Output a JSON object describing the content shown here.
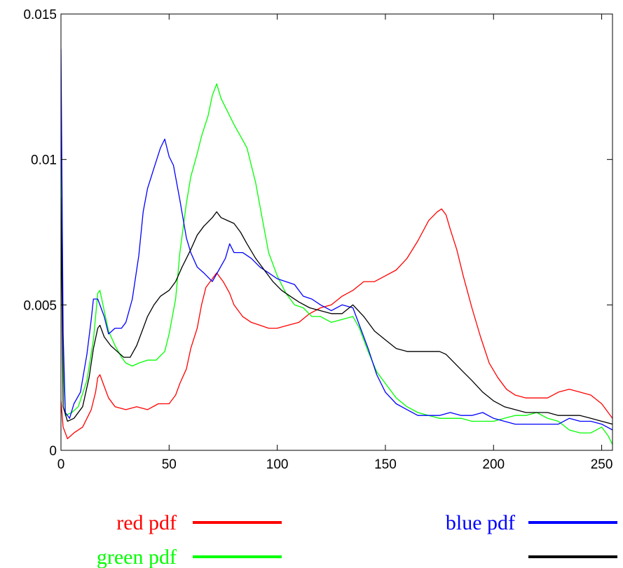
{
  "chart_data": {
    "type": "line",
    "title": "",
    "xlabel": "",
    "ylabel": "",
    "xlim": [
      0,
      255
    ],
    "ylim": [
      0,
      0.015
    ],
    "xticks": [
      0,
      50,
      100,
      150,
      200,
      250
    ],
    "xtick_labels": [
      "0",
      "50",
      "100",
      "150",
      "200",
      "250"
    ],
    "yticks": [
      0,
      0.005,
      0.01,
      0.015
    ],
    "ytick_labels": [
      "0",
      "0.005",
      "0.01",
      "0.015"
    ],
    "grid": false,
    "legend_placement": "bottom",
    "series": [
      {
        "name": "red pdf",
        "color": "#ff0000",
        "points": [
          [
            0,
            0.0017
          ],
          [
            1,
            0.0008
          ],
          [
            3,
            0.0004
          ],
          [
            6,
            0.0006
          ],
          [
            10,
            0.0008
          ],
          [
            14,
            0.0014
          ],
          [
            16,
            0.002
          ],
          [
            17,
            0.0025
          ],
          [
            18,
            0.0026
          ],
          [
            20,
            0.0022
          ],
          [
            22,
            0.0018
          ],
          [
            25,
            0.0015
          ],
          [
            30,
            0.0014
          ],
          [
            35,
            0.0015
          ],
          [
            40,
            0.0014
          ],
          [
            45,
            0.0016
          ],
          [
            50,
            0.0016
          ],
          [
            53,
            0.0019
          ],
          [
            55,
            0.0023
          ],
          [
            58,
            0.0028
          ],
          [
            60,
            0.0035
          ],
          [
            63,
            0.0042
          ],
          [
            65,
            0.005
          ],
          [
            67,
            0.0056
          ],
          [
            70,
            0.0059
          ],
          [
            72,
            0.0061
          ],
          [
            75,
            0.0058
          ],
          [
            78,
            0.0054
          ],
          [
            80,
            0.005
          ],
          [
            84,
            0.0046
          ],
          [
            88,
            0.0044
          ],
          [
            92,
            0.0043
          ],
          [
            96,
            0.0042
          ],
          [
            100,
            0.0042
          ],
          [
            105,
            0.0043
          ],
          [
            110,
            0.0044
          ],
          [
            115,
            0.0047
          ],
          [
            120,
            0.0049
          ],
          [
            125,
            0.005
          ],
          [
            130,
            0.0053
          ],
          [
            135,
            0.0055
          ],
          [
            140,
            0.0058
          ],
          [
            145,
            0.0058
          ],
          [
            150,
            0.006
          ],
          [
            155,
            0.0062
          ],
          [
            160,
            0.0066
          ],
          [
            165,
            0.0072
          ],
          [
            170,
            0.0079
          ],
          [
            174,
            0.0082
          ],
          [
            176,
            0.0083
          ],
          [
            178,
            0.0081
          ],
          [
            180,
            0.0076
          ],
          [
            183,
            0.0069
          ],
          [
            186,
            0.006
          ],
          [
            190,
            0.0049
          ],
          [
            194,
            0.0039
          ],
          [
            198,
            0.003
          ],
          [
            202,
            0.0025
          ],
          [
            206,
            0.0021
          ],
          [
            210,
            0.0019
          ],
          [
            215,
            0.0018
          ],
          [
            220,
            0.0018
          ],
          [
            225,
            0.0018
          ],
          [
            230,
            0.002
          ],
          [
            235,
            0.0021
          ],
          [
            240,
            0.002
          ],
          [
            245,
            0.0019
          ],
          [
            250,
            0.0016
          ],
          [
            255,
            0.0011
          ]
        ]
      },
      {
        "name": "green pdf",
        "color": "#00ff00",
        "points": [
          [
            0,
            0.0104
          ],
          [
            1,
            0.003
          ],
          [
            2,
            0.0012
          ],
          [
            5,
            0.0013
          ],
          [
            8,
            0.0015
          ],
          [
            12,
            0.0024
          ],
          [
            15,
            0.0038
          ],
          [
            17,
            0.0054
          ],
          [
            18,
            0.0055
          ],
          [
            20,
            0.0048
          ],
          [
            22,
            0.0041
          ],
          [
            25,
            0.0036
          ],
          [
            28,
            0.0032
          ],
          [
            30,
            0.003
          ],
          [
            33,
            0.0029
          ],
          [
            36,
            0.003
          ],
          [
            40,
            0.0031
          ],
          [
            44,
            0.0031
          ],
          [
            48,
            0.0034
          ],
          [
            50,
            0.004
          ],
          [
            53,
            0.0052
          ],
          [
            55,
            0.0068
          ],
          [
            58,
            0.0085
          ],
          [
            60,
            0.0094
          ],
          [
            63,
            0.0102
          ],
          [
            65,
            0.0108
          ],
          [
            68,
            0.0115
          ],
          [
            70,
            0.0122
          ],
          [
            72,
            0.0126
          ],
          [
            74,
            0.0121
          ],
          [
            76,
            0.0118
          ],
          [
            78,
            0.0115
          ],
          [
            80,
            0.0112
          ],
          [
            83,
            0.0108
          ],
          [
            86,
            0.0104
          ],
          [
            90,
            0.0092
          ],
          [
            93,
            0.008
          ],
          [
            96,
            0.0068
          ],
          [
            100,
            0.006
          ],
          [
            104,
            0.0054
          ],
          [
            108,
            0.005
          ],
          [
            112,
            0.0049
          ],
          [
            116,
            0.0046
          ],
          [
            120,
            0.0046
          ],
          [
            125,
            0.0044
          ],
          [
            130,
            0.0045
          ],
          [
            135,
            0.0046
          ],
          [
            138,
            0.0042
          ],
          [
            142,
            0.0034
          ],
          [
            146,
            0.0027
          ],
          [
            150,
            0.0023
          ],
          [
            155,
            0.0018
          ],
          [
            160,
            0.0015
          ],
          [
            165,
            0.0013
          ],
          [
            170,
            0.0012
          ],
          [
            175,
            0.0011
          ],
          [
            180,
            0.0011
          ],
          [
            185,
            0.0011
          ],
          [
            190,
            0.001
          ],
          [
            195,
            0.001
          ],
          [
            200,
            0.001
          ],
          [
            205,
            0.0011
          ],
          [
            210,
            0.0012
          ],
          [
            215,
            0.0012
          ],
          [
            220,
            0.0013
          ],
          [
            225,
            0.0011
          ],
          [
            230,
            0.001
          ],
          [
            235,
            0.0007
          ],
          [
            240,
            0.0006
          ],
          [
            245,
            0.0006
          ],
          [
            250,
            0.0008
          ],
          [
            253,
            0.0005
          ],
          [
            255,
            0.0002
          ]
        ]
      },
      {
        "name": "blue pdf",
        "color": "#0000ff",
        "points": [
          [
            0,
            0.0138
          ],
          [
            1,
            0.004
          ],
          [
            2,
            0.0013
          ],
          [
            4,
            0.0011
          ],
          [
            6,
            0.0016
          ],
          [
            9,
            0.002
          ],
          [
            12,
            0.0033
          ],
          [
            14,
            0.0045
          ],
          [
            15,
            0.0052
          ],
          [
            17,
            0.0052
          ],
          [
            20,
            0.0046
          ],
          [
            22,
            0.004
          ],
          [
            25,
            0.0042
          ],
          [
            28,
            0.0042
          ],
          [
            30,
            0.0044
          ],
          [
            33,
            0.0052
          ],
          [
            36,
            0.0067
          ],
          [
            38,
            0.0082
          ],
          [
            40,
            0.009
          ],
          [
            43,
            0.0097
          ],
          [
            46,
            0.0104
          ],
          [
            48,
            0.0107
          ],
          [
            50,
            0.0101
          ],
          [
            52,
            0.0098
          ],
          [
            55,
            0.0086
          ],
          [
            58,
            0.0073
          ],
          [
            60,
            0.0068
          ],
          [
            63,
            0.0063
          ],
          [
            66,
            0.0061
          ],
          [
            70,
            0.0058
          ],
          [
            73,
            0.0062
          ],
          [
            76,
            0.0066
          ],
          [
            78,
            0.0071
          ],
          [
            80,
            0.0068
          ],
          [
            84,
            0.0068
          ],
          [
            88,
            0.0066
          ],
          [
            92,
            0.0063
          ],
          [
            96,
            0.0061
          ],
          [
            100,
            0.0059
          ],
          [
            104,
            0.0058
          ],
          [
            108,
            0.0057
          ],
          [
            112,
            0.0053
          ],
          [
            116,
            0.0052
          ],
          [
            120,
            0.005
          ],
          [
            125,
            0.0048
          ],
          [
            130,
            0.005
          ],
          [
            135,
            0.0049
          ],
          [
            138,
            0.0043
          ],
          [
            142,
            0.0035
          ],
          [
            146,
            0.0026
          ],
          [
            150,
            0.002
          ],
          [
            155,
            0.0016
          ],
          [
            160,
            0.0014
          ],
          [
            165,
            0.0012
          ],
          [
            170,
            0.0012
          ],
          [
            175,
            0.0012
          ],
          [
            180,
            0.0013
          ],
          [
            185,
            0.0012
          ],
          [
            190,
            0.0012
          ],
          [
            195,
            0.0013
          ],
          [
            200,
            0.0011
          ],
          [
            205,
            0.001
          ],
          [
            210,
            0.0009
          ],
          [
            215,
            0.0009
          ],
          [
            220,
            0.0009
          ],
          [
            225,
            0.0009
          ],
          [
            230,
            0.0009
          ],
          [
            235,
            0.0011
          ],
          [
            240,
            0.001
          ],
          [
            245,
            0.001
          ],
          [
            250,
            0.0009
          ],
          [
            255,
            0.0007
          ]
        ]
      },
      {
        "name": "",
        "color": "#000000",
        "points": [
          [
            0,
            0.0087
          ],
          [
            1,
            0.0015
          ],
          [
            3,
            0.001
          ],
          [
            6,
            0.0011
          ],
          [
            10,
            0.0015
          ],
          [
            13,
            0.0025
          ],
          [
            15,
            0.0035
          ],
          [
            17,
            0.0042
          ],
          [
            18,
            0.0043
          ],
          [
            20,
            0.0039
          ],
          [
            23,
            0.0036
          ],
          [
            26,
            0.0034
          ],
          [
            29,
            0.0032
          ],
          [
            32,
            0.0032
          ],
          [
            35,
            0.0036
          ],
          [
            38,
            0.0042
          ],
          [
            40,
            0.0046
          ],
          [
            43,
            0.005
          ],
          [
            46,
            0.0053
          ],
          [
            50,
            0.0055
          ],
          [
            53,
            0.0058
          ],
          [
            56,
            0.0063
          ],
          [
            60,
            0.0069
          ],
          [
            63,
            0.0074
          ],
          [
            66,
            0.0077
          ],
          [
            70,
            0.008
          ],
          [
            72,
            0.0082
          ],
          [
            74,
            0.008
          ],
          [
            77,
            0.0079
          ],
          [
            80,
            0.0078
          ],
          [
            83,
            0.0075
          ],
          [
            86,
            0.0071
          ],
          [
            90,
            0.0066
          ],
          [
            94,
            0.0062
          ],
          [
            98,
            0.0058
          ],
          [
            102,
            0.0055
          ],
          [
            106,
            0.0053
          ],
          [
            110,
            0.0051
          ],
          [
            115,
            0.0049
          ],
          [
            120,
            0.0048
          ],
          [
            125,
            0.0047
          ],
          [
            130,
            0.0047
          ],
          [
            135,
            0.005
          ],
          [
            140,
            0.0046
          ],
          [
            145,
            0.0041
          ],
          [
            150,
            0.0038
          ],
          [
            155,
            0.0035
          ],
          [
            160,
            0.0034
          ],
          [
            165,
            0.0034
          ],
          [
            170,
            0.0034
          ],
          [
            175,
            0.0034
          ],
          [
            178,
            0.0033
          ],
          [
            182,
            0.003
          ],
          [
            186,
            0.0027
          ],
          [
            190,
            0.0024
          ],
          [
            195,
            0.002
          ],
          [
            200,
            0.0017
          ],
          [
            205,
            0.0015
          ],
          [
            210,
            0.0014
          ],
          [
            215,
            0.0013
          ],
          [
            220,
            0.0013
          ],
          [
            225,
            0.0013
          ],
          [
            230,
            0.0012
          ],
          [
            235,
            0.0012
          ],
          [
            240,
            0.0012
          ],
          [
            245,
            0.0011
          ],
          [
            250,
            0.001
          ],
          [
            255,
            0.0009
          ]
        ]
      }
    ]
  }
}
